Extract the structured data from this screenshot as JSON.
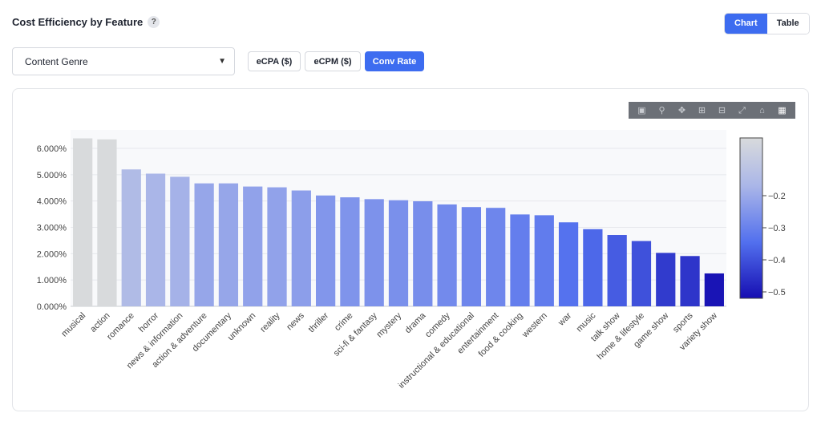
{
  "header": {
    "title": "Cost Efficiency by Feature",
    "help_icon": "?",
    "view_toggle": {
      "chart_label": "Chart",
      "table_label": "Table",
      "selected": "Chart"
    }
  },
  "controls": {
    "feature_select": {
      "value": "Content Genre"
    },
    "metric_buttons": [
      {
        "label": "eCPA ($)",
        "active": false
      },
      {
        "label": "eCPM ($)",
        "active": false
      },
      {
        "label": "Conv Rate",
        "active": true
      }
    ]
  },
  "modebar": {
    "icons": [
      "camera-icon",
      "zoom-icon",
      "pan-icon",
      "zoom-in-icon",
      "zoom-out-icon",
      "autoscale-icon",
      "home-icon",
      "plotly-logo-icon"
    ]
  },
  "colors": {
    "accent": "#3d6cf0"
  },
  "chart_data": {
    "type": "bar",
    "categories": [
      "musical",
      "action",
      "romance",
      "horror",
      "news & information",
      "action & adventure",
      "documentary",
      "unknown",
      "reality",
      "news",
      "thriller",
      "crime",
      "sci-fi & fantasy",
      "mystery",
      "drama",
      "comedy",
      "instructional & educational",
      "entertainment",
      "food & cooking",
      "western",
      "war",
      "music",
      "talk show",
      "home & lifestyle",
      "game show",
      "sports",
      "variety show"
    ],
    "values": [
      6.38,
      6.34,
      5.2,
      5.04,
      4.92,
      4.67,
      4.67,
      4.55,
      4.52,
      4.4,
      4.21,
      4.14,
      4.07,
      4.03,
      3.99,
      3.87,
      3.77,
      3.74,
      3.49,
      3.46,
      3.19,
      2.93,
      2.71,
      2.48,
      2.03,
      1.91,
      1.25
    ],
    "color_values": [
      -0.02,
      -0.02,
      -0.15,
      -0.17,
      -0.18,
      -0.21,
      -0.21,
      -0.22,
      -0.22,
      -0.23,
      -0.25,
      -0.255,
      -0.26,
      -0.265,
      -0.27,
      -0.28,
      -0.29,
      -0.29,
      -0.31,
      -0.315,
      -0.34,
      -0.36,
      -0.38,
      -0.4,
      -0.44,
      -0.45,
      -0.51
    ],
    "y_tick_labels": [
      "0.000%",
      "1.000%",
      "2.000%",
      "3.000%",
      "4.000%",
      "5.000%",
      "6.000%"
    ],
    "y_ticks": [
      0,
      1,
      2,
      3,
      4,
      5,
      6
    ],
    "ylim": [
      0,
      6.7
    ],
    "title": "",
    "xlabel": "",
    "ylabel": "",
    "grid": true,
    "legend": "none",
    "colorscale": {
      "min": -0.52,
      "max": -0.02,
      "tick_values": [
        -0.2,
        -0.3,
        -0.4,
        -0.5
      ],
      "tick_labels": [
        "−0.2",
        "−0.3",
        "−0.4",
        "−0.5"
      ]
    }
  }
}
